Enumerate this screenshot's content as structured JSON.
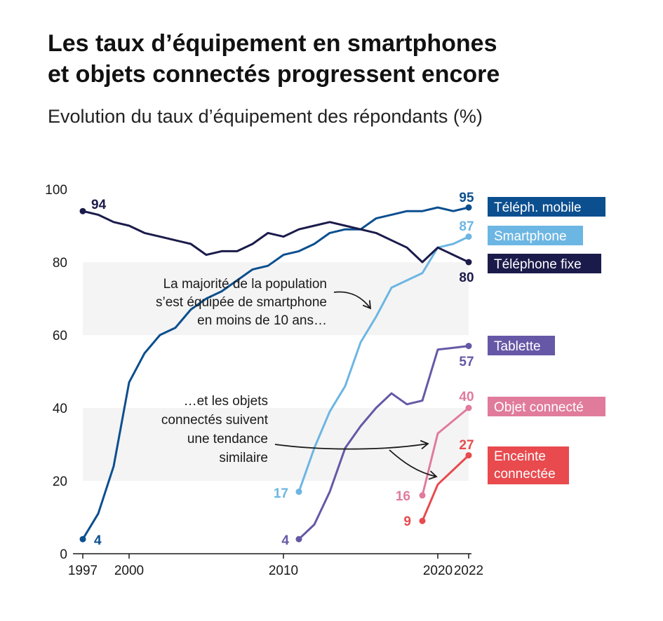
{
  "title_lines": [
    "Les taux d’équipement en smartphones",
    "et objets connectés progressent encore"
  ],
  "subtitle": "Evolution du taux d’équipement des répondants (%)",
  "chart_data": {
    "type": "line",
    "title": "Les taux d’équipement en smartphones et objets connectés progressent encore",
    "subtitle": "Evolution du taux d’équipement des répondants (%)",
    "xlim": [
      1997,
      2022
    ],
    "ylim": [
      0,
      100
    ],
    "x_ticks": [
      {
        "value": 1997,
        "label": "1997"
      },
      {
        "value": 2000,
        "label": "2000"
      },
      {
        "value": 2010,
        "label": "2010"
      },
      {
        "value": 2020,
        "label": "2020"
      },
      {
        "value": 2022,
        "label": "2022"
      }
    ],
    "y_ticks": [
      {
        "value": 0,
        "label": "0"
      },
      {
        "value": 20,
        "label": "20"
      },
      {
        "value": 40,
        "label": "40"
      },
      {
        "value": 60,
        "label": "60"
      },
      {
        "value": 80,
        "label": "80"
      },
      {
        "value": 100,
        "label": "100"
      }
    ],
    "grid": false,
    "shaded_bands": [
      {
        "from": 60,
        "to": 80,
        "color": "#f4f4f4"
      },
      {
        "from": 20,
        "to": 40,
        "color": "#f4f4f4"
      }
    ],
    "series": [
      {
        "name": "Téléph. mobile",
        "color": "#0b4f8f",
        "label_text_color": "#ffffff",
        "x": [
          1997,
          1998,
          1999,
          2000,
          2001,
          2002,
          2003,
          2004,
          2005,
          2006,
          2007,
          2008,
          2009,
          2010,
          2011,
          2012,
          2013,
          2014,
          2015,
          2016,
          2017,
          2018,
          2019,
          2020,
          2021,
          2022
        ],
        "y": [
          4,
          11,
          24,
          47,
          55,
          60,
          62,
          67,
          70,
          72,
          75,
          78,
          79,
          82,
          83,
          85,
          88,
          89,
          89,
          92,
          93,
          94,
          94,
          95,
          94,
          95
        ],
        "start_label": "4",
        "end_label": "95"
      },
      {
        "name": "Smartphone",
        "color": "#6cb6e3",
        "label_text_color": "#ffffff",
        "x": [
          2011,
          2012,
          2013,
          2014,
          2015,
          2016,
          2017,
          2018,
          2019,
          2020,
          2021,
          2022
        ],
        "y": [
          17,
          29,
          39,
          46,
          58,
          65,
          73,
          75,
          77,
          84,
          85,
          87
        ],
        "start_label": "17",
        "end_label": "87"
      },
      {
        "name": "Téléphone fixe",
        "color": "#1b1b4b",
        "label_text_color": "#ffffff",
        "x": [
          1997,
          1998,
          1999,
          2000,
          2001,
          2002,
          2003,
          2004,
          2005,
          2006,
          2007,
          2008,
          2009,
          2010,
          2011,
          2012,
          2013,
          2014,
          2015,
          2016,
          2017,
          2018,
          2019,
          2020,
          2021,
          2022
        ],
        "y": [
          94,
          93,
          91,
          90,
          88,
          87,
          86,
          85,
          82,
          83,
          83,
          85,
          88,
          87,
          89,
          90,
          91,
          90,
          89,
          88,
          86,
          84,
          80,
          84,
          82,
          80
        ],
        "start_label": "94",
        "end_label": "80"
      },
      {
        "name": "Tablette",
        "color": "#6658a6",
        "label_text_color": "#ffffff",
        "x": [
          2011,
          2012,
          2013,
          2014,
          2015,
          2016,
          2017,
          2018,
          2019,
          2020,
          2021,
          2022
        ],
        "y": [
          4,
          8,
          17,
          29,
          35,
          40,
          44,
          41,
          42,
          56,
          56.5,
          57
        ],
        "start_label": "4",
        "end_label": "57"
      },
      {
        "name": "Objet connecté",
        "color": "#e07b9c",
        "label_text_color": "#ffffff",
        "x": [
          2019,
          2020,
          2022
        ],
        "y": [
          16,
          33,
          40
        ],
        "start_label": "16",
        "end_label": "40"
      },
      {
        "name": "Enceinte connectée",
        "label_lines": [
          "Enceinte",
          "connectée"
        ],
        "color": "#e84a4e",
        "label_text_color": "#ffffff",
        "x": [
          2019,
          2020,
          2022
        ],
        "y": [
          9,
          19,
          27
        ],
        "start_label": "9",
        "end_label": "27"
      }
    ],
    "annotations": [
      {
        "lines": [
          "La majorité de la population",
          "s’est équipée de smartphone",
          "en moins de 10 ans…"
        ]
      },
      {
        "lines": [
          "…et les objets",
          "connectés suivent",
          "une tendance",
          "similaire"
        ]
      }
    ]
  }
}
